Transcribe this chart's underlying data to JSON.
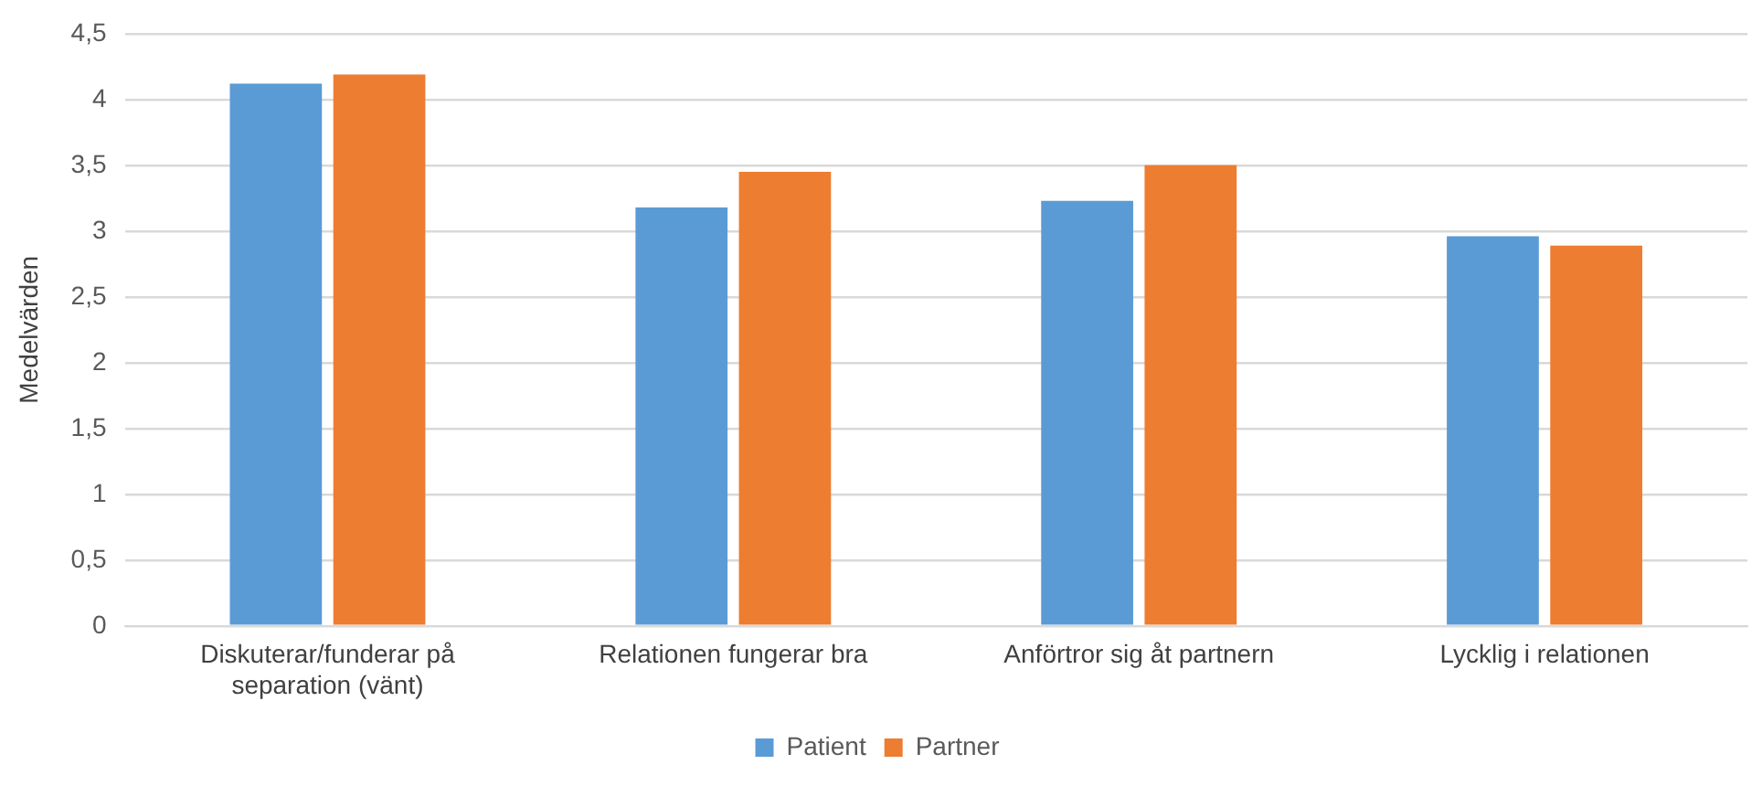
{
  "chart_data": {
    "type": "bar",
    "ylabel": "Medelvärden",
    "categories": [
      "Diskuterar/funderar på separation (vänt)",
      "Relationen fungerar bra",
      "Anförtror sig åt partnern",
      "Lycklig i relationen"
    ],
    "series": [
      {
        "name": "Patient",
        "color": "#5b9bd5",
        "values": [
          4.12,
          3.18,
          3.23,
          2.96
        ]
      },
      {
        "name": "Partner",
        "color": "#ed7d31",
        "values": [
          4.19,
          3.45,
          3.5,
          2.89
        ]
      }
    ],
    "ylim": [
      0,
      4.5
    ],
    "yticks": [
      0,
      {
        "value": 0.5,
        "label": "0,5"
      },
      1,
      {
        "value": 1.5,
        "label": "1,5"
      },
      2,
      {
        "value": 2.5,
        "label": "2,5"
      },
      3,
      {
        "value": 3.5,
        "label": "3,5"
      },
      4,
      {
        "value": 4.5,
        "label": "4,5"
      }
    ],
    "grid": "y",
    "legend": "bottom"
  }
}
